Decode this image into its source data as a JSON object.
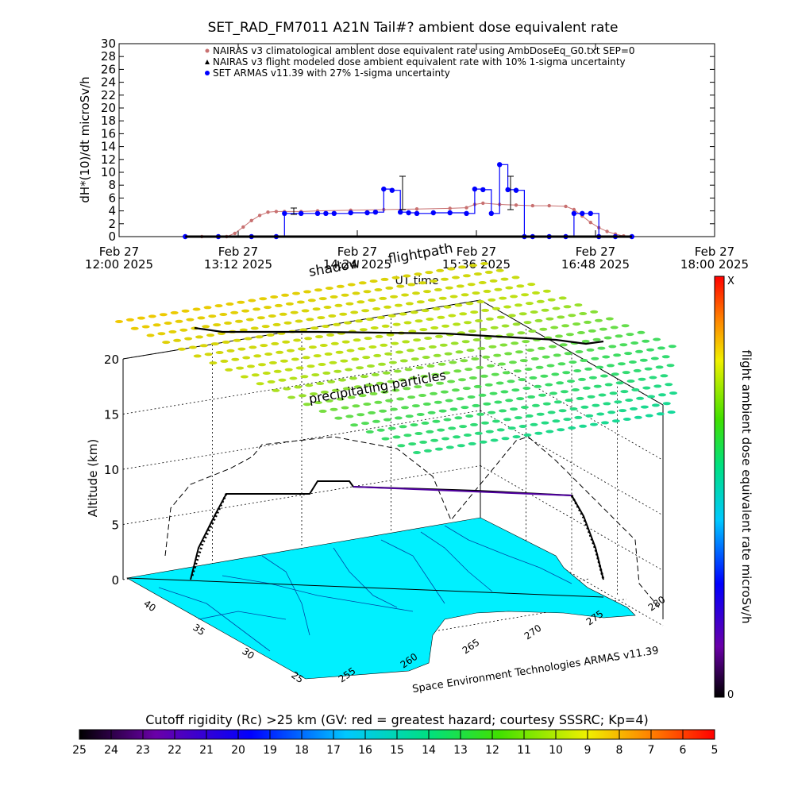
{
  "chart_data": [
    {
      "type": "scatter",
      "title": "SET_RAD_FM7011  A21N Tail#? ambient dose equivalent rate",
      "ylabel": "dH*(10)/dt microSv/h",
      "xlabel": "UT time",
      "ylim": [
        0,
        30
      ],
      "yticks": [
        0,
        2,
        4,
        6,
        8,
        10,
        12,
        14,
        16,
        18,
        20,
        22,
        24,
        26,
        28,
        30
      ],
      "xlim": [
        "2025-02-27T12:00",
        "2025-02-27T18:00"
      ],
      "xticks": [
        {
          "t": "2025-02-27T12:00",
          "line1": "Feb 27",
          "line2": "12:00 2025"
        },
        {
          "t": "2025-02-27T13:12",
          "line1": "Feb 27",
          "line2": "13:12 2025"
        },
        {
          "t": "2025-02-27T14:24",
          "line1": "Feb 27",
          "line2": "14:24 2025"
        },
        {
          "t": "2025-02-27T15:36",
          "line1": "Feb 27",
          "line2": "15:36 2025"
        },
        {
          "t": "2025-02-27T16:48",
          "line1": "Feb 27",
          "line2": "16:48 2025"
        },
        {
          "t": "2025-02-27T18:00",
          "line1": "Feb 27",
          "line2": "18:00 2025"
        }
      ],
      "legend": [
        "NAIRAS v3 climatological ambient dose equivalent rate using AmbDoseEq_G0.txt SEP=0",
        "NAIRAS v3 flight modeled dose ambient equivalent rate with 10% 1-sigma uncertainty",
        "SET ARMAS v11.39 with 27% 1-sigma uncertainty"
      ],
      "legend_position": "top",
      "series": [
        {
          "color": "#c87070",
          "x": [
            "12:40",
            "12:50",
            "13:00",
            "13:05",
            "13:10",
            "13:15",
            "13:20",
            "13:25",
            "13:30",
            "13:35",
            "13:40",
            "13:50",
            "14:00",
            "14:20",
            "14:40",
            "15:00",
            "15:20",
            "15:30",
            "15:35",
            "15:40",
            "15:50",
            "16:00",
            "16:10",
            "16:20",
            "16:30",
            "16:35",
            "16:40",
            "16:45",
            "16:50",
            "16:55",
            "17:00",
            "17:05",
            "17:10"
          ],
          "y": [
            0,
            0,
            0,
            0,
            0.5,
            1.5,
            2.5,
            3.3,
            3.8,
            3.9,
            3.9,
            3.9,
            4.0,
            4.1,
            4.2,
            4.3,
            4.4,
            4.5,
            5.0,
            5.2,
            5.0,
            4.9,
            4.8,
            4.8,
            4.7,
            4.2,
            3.2,
            2.2,
            1.4,
            0.8,
            0.4,
            0.1,
            0
          ]
        },
        {
          "color": "#0000ff",
          "x": [
            "12:40",
            "13:00",
            "13:20",
            "13:35",
            "13:40",
            "13:50",
            "14:00",
            "14:05",
            "14:10",
            "14:20",
            "14:30",
            "14:35",
            "14:40",
            "14:45",
            "14:50",
            "14:55",
            "15:00",
            "15:10",
            "15:20",
            "15:30",
            "15:35",
            "15:40",
            "15:45",
            "15:50",
            "15:55",
            "16:00",
            "16:05",
            "16:10",
            "16:20",
            "16:30",
            "16:35",
            "16:40",
            "16:45",
            "16:50",
            "17:00",
            "17:10"
          ],
          "y": [
            0,
            0,
            0,
            0,
            3.6,
            3.6,
            3.6,
            3.6,
            3.6,
            3.7,
            3.7,
            3.8,
            7.4,
            7.2,
            3.8,
            3.7,
            3.6,
            3.7,
            3.7,
            3.6,
            7.4,
            7.3,
            3.6,
            11.2,
            7.3,
            7.2,
            0,
            0,
            0,
            0,
            3.6,
            3.6,
            3.6,
            0,
            0,
            0
          ]
        }
      ]
    },
    {
      "type": "3d-surface",
      "zlabel": "Altitude (km)",
      "zticks": [
        0,
        5,
        10,
        15,
        20
      ],
      "lat_ticks": [
        40,
        35,
        30,
        25
      ],
      "lon_ticks": [
        255,
        260,
        265,
        270,
        275,
        280
      ],
      "annotations": [
        "shadow",
        "flightpath",
        "precipitating particles"
      ],
      "colorbar_title": "flight ambient dose equivalent rate microSv/h",
      "colorbar_top": "X",
      "colorbar_bottom": "0",
      "credit": "Space Environment Technologies ARMAS v11.39"
    },
    {
      "type": "colorbar",
      "title": "Cutoff rigidity (Rc) >25 km (GV: red = greatest hazard; courtesy SSSRC; Kp=4)",
      "ticks": [
        25,
        24,
        23,
        22,
        21,
        20,
        19,
        18,
        17,
        16,
        15,
        14,
        13,
        12,
        11,
        10,
        9,
        8,
        7,
        6,
        5
      ]
    }
  ]
}
